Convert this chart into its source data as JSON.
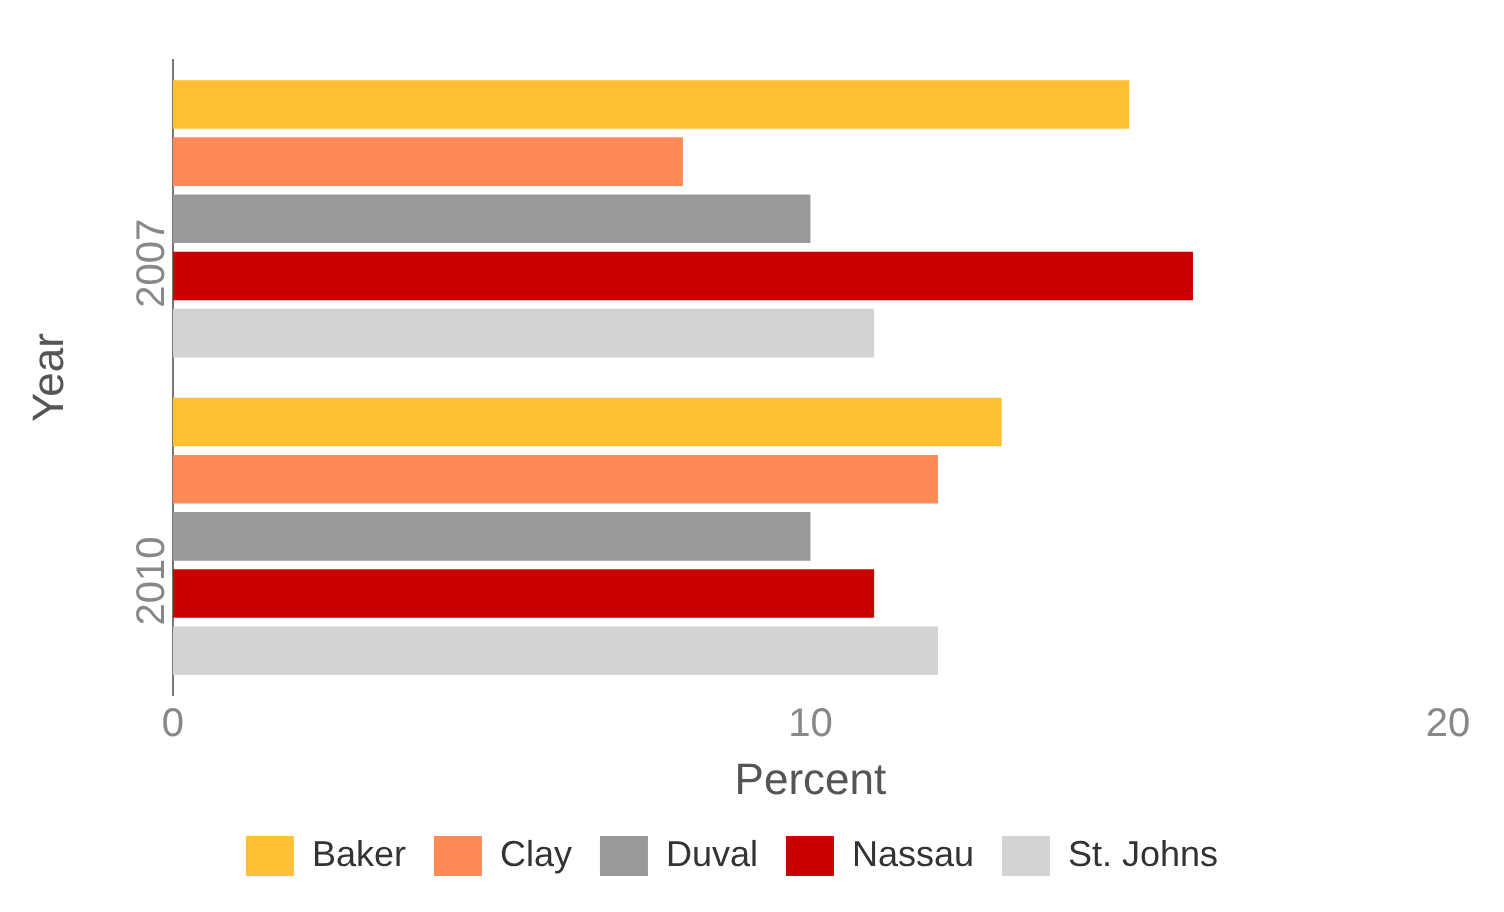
{
  "chart_data": {
    "type": "bar",
    "orientation": "horizontal",
    "xlabel": "Percent",
    "ylabel": "Year",
    "categories": [
      "2007",
      "2010"
    ],
    "series": [
      {
        "name": "Baker",
        "color": "#ffc133",
        "values": [
          15,
          13
        ]
      },
      {
        "name": "Clay",
        "color": "#ff8a55",
        "values": [
          8,
          12
        ]
      },
      {
        "name": "Duval",
        "color": "#999999",
        "values": [
          10,
          10
        ]
      },
      {
        "name": "Nassau",
        "color": "#cc0000",
        "values": [
          16,
          11
        ]
      },
      {
        "name": "St. Johns",
        "color": "#d3d3d3",
        "values": [
          11,
          12
        ]
      }
    ],
    "xlim": [
      0,
      20
    ],
    "xticks": [
      0,
      10,
      20
    ],
    "grid": false,
    "legend": "bottom"
  }
}
